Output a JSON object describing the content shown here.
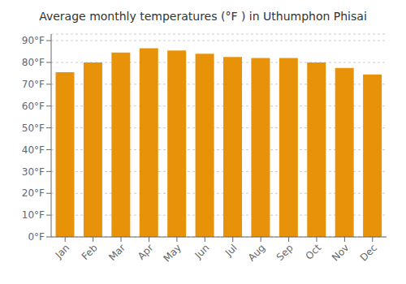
{
  "chart_data": {
    "type": "bar",
    "title": "Average monthly temperatures (°F ) in Uthumphon Phisai",
    "categories": [
      "Jan",
      "Feb",
      "Mar",
      "Apr",
      "May",
      "Jun",
      "Jul",
      "Aug",
      "Sep",
      "Oct",
      "Nov",
      "Dec"
    ],
    "values": [
      75.5,
      80.0,
      84.5,
      86.5,
      85.5,
      84.0,
      82.5,
      82.0,
      82.0,
      80.0,
      77.5,
      74.5
    ],
    "color": "#E8920A",
    "ylim": [
      0,
      93
    ],
    "yticks": [
      {
        "value": 0,
        "label": "0°F"
      },
      {
        "value": 10,
        "label": "10°F"
      },
      {
        "value": 20,
        "label": "20°F"
      },
      {
        "value": 30,
        "label": "30°F"
      },
      {
        "value": 40,
        "label": "40°F"
      },
      {
        "value": 50,
        "label": "50°F"
      },
      {
        "value": 60,
        "label": "60°F"
      },
      {
        "value": 70,
        "label": "70°F"
      },
      {
        "value": 80,
        "label": "80°F"
      },
      {
        "value": 90,
        "label": "90°F"
      }
    ],
    "grid": true
  }
}
